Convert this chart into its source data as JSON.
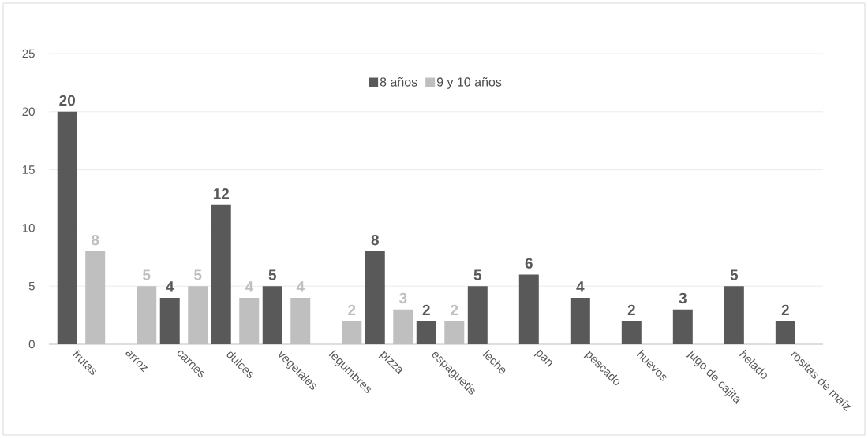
{
  "chart_data": {
    "type": "bar",
    "categories": [
      "frutas",
      "arroz",
      "carnes",
      "dulces",
      "vegetales",
      "legumbres",
      "pizza",
      "espaguetis",
      "leche",
      "pan",
      "pescado",
      "huevos",
      "jugo de cajita",
      "helado",
      "rositas de maíz"
    ],
    "series": [
      {
        "name": "8 años",
        "color": "#595959",
        "values": [
          20,
          null,
          4,
          12,
          5,
          null,
          8,
          2,
          5,
          6,
          4,
          2,
          3,
          5,
          2
        ]
      },
      {
        "name": "9 y 10 años",
        "color": "#bfbfbf",
        "values": [
          8,
          5,
          5,
          4,
          4,
          2,
          3,
          2,
          null,
          null,
          null,
          null,
          null,
          null,
          null
        ]
      }
    ],
    "ylim": [
      0,
      25
    ],
    "yticks": [
      0,
      5,
      10,
      15,
      20,
      25
    ],
    "grid": "y",
    "legend": "top",
    "data_labels": true
  }
}
